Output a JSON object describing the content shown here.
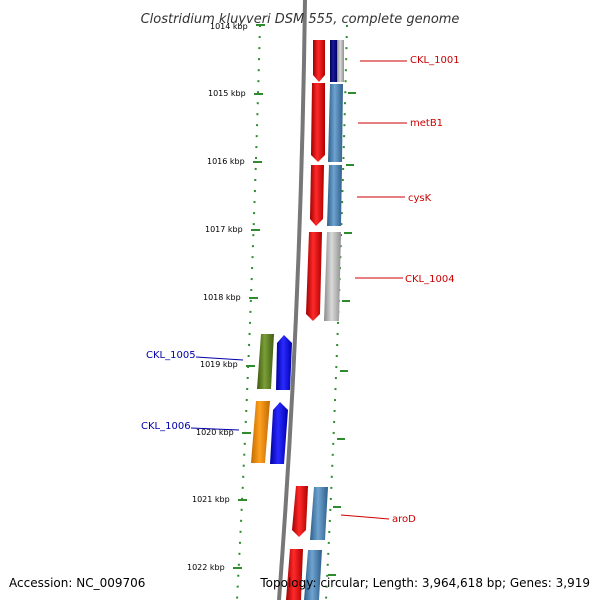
{
  "title": "Clostridium kluyveri DSM 555, complete genome",
  "footer": {
    "accession": "Accession: NC_009706",
    "topology": "Topology: circular; Length: 3,964,618 bp; Genes: 3,919"
  },
  "ticks": [
    "1014 kbp",
    "1015 kbp",
    "1016 kbp",
    "1017 kbp",
    "1018 kbp",
    "1019 kbp",
    "1020 kbp",
    "1021 kbp",
    "1022 kbp"
  ],
  "genes": {
    "forward": [
      {
        "label": "CKL_1001",
        "color": "#cc0000"
      },
      {
        "label": "metB1",
        "color": "#cc0000"
      },
      {
        "label": "cysK",
        "color": "#cc0000"
      },
      {
        "label": "CKL_1004",
        "color": "#cc0000"
      },
      {
        "label": "aroD",
        "color": "#cc0000"
      }
    ],
    "reverse": [
      {
        "label": "CKL_1005",
        "color": "#0000aa"
      },
      {
        "label": "CKL_1006",
        "color": "#0000aa"
      }
    ]
  },
  "colors": {
    "backbone": "#777777",
    "tick": "#2e8b2e",
    "forward_cds": "#ee0000",
    "reverse_cds": "#0000ee",
    "cog_steel": "#4682b4",
    "cog_navy": "#000080",
    "cog_gray": "#b0b0b0",
    "cog_olive": "#5b7a1a",
    "cog_orange": "#ee8800"
  }
}
